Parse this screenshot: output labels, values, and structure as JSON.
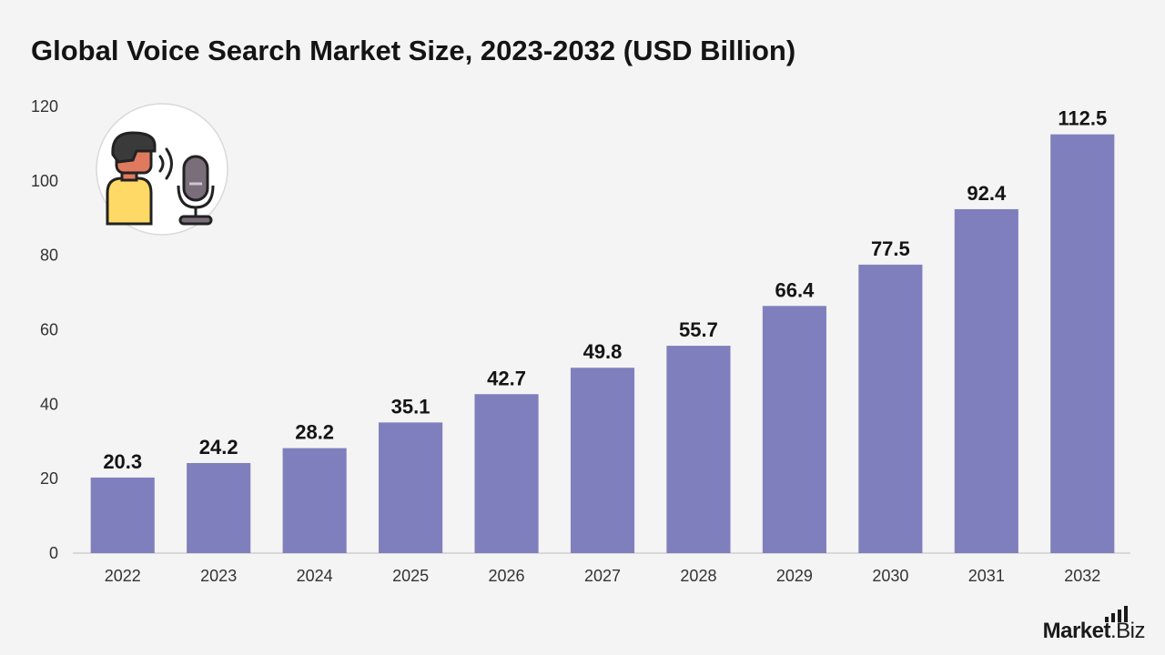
{
  "title": "Global Voice Search Market Size, 2023-2032 (USD Billion)",
  "brand": {
    "name_bold": "Market",
    "name_regular": ".Biz",
    "icon": "bars-icon"
  },
  "illustration": {
    "icon": "person-speaking-microphone-icon"
  },
  "colors": {
    "bar": "#7f7fbe",
    "background": "#f4f4f4",
    "text": "#141414",
    "axis": "#cfcfcf"
  },
  "chart_data": {
    "type": "bar",
    "title": "Global Voice Search Market Size, 2023-2032 (USD Billion)",
    "xlabel": "",
    "ylabel": "",
    "categories": [
      "2022",
      "2023",
      "2024",
      "2025",
      "2026",
      "2027",
      "2028",
      "2029",
      "2030",
      "2031",
      "2032"
    ],
    "values": [
      20.3,
      24.2,
      28.2,
      35.1,
      42.7,
      49.8,
      55.7,
      66.4,
      77.5,
      92.4,
      112.5
    ],
    "data_labels": [
      "20.3",
      "24.2",
      "28.2",
      "35.1",
      "42.7",
      "49.8",
      "55.7",
      "66.4",
      "77.5",
      "92.4",
      "112.5"
    ],
    "ylim": [
      0,
      120
    ],
    "yticks": [
      "0",
      "20",
      "40",
      "60",
      "80",
      "100",
      "120"
    ],
    "grid": false,
    "legend": "none"
  }
}
